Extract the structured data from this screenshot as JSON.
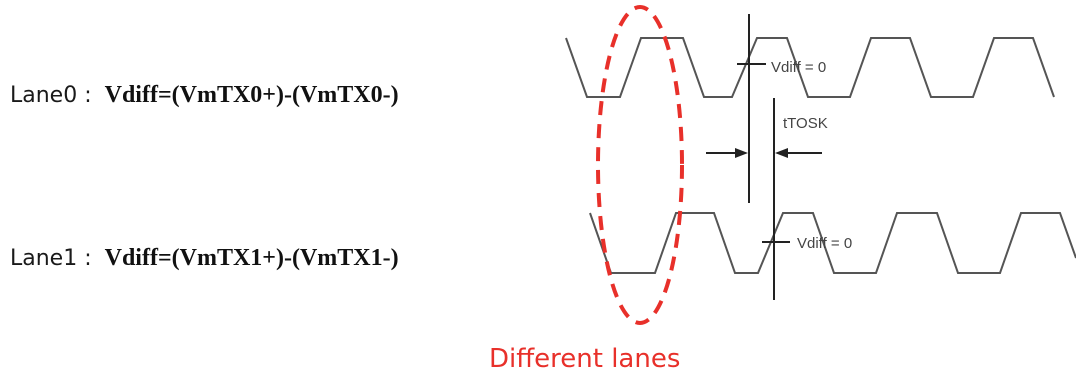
{
  "lanes": [
    {
      "prefix": "Lane0 : ",
      "formula": "Vdiff=(VmTX0+)-(VmTX0-)"
    },
    {
      "prefix": "Lane1 : ",
      "formula": "Vdiff=(VmTX1+)-(VmTX1-)"
    }
  ],
  "labels": {
    "crossing_lane0": "Vdiff = 0",
    "crossing_lane1": "Vdiff = 0",
    "skew": "tTOSK",
    "caption": "Different lanes"
  },
  "colors": {
    "waveform": "#555555",
    "marker": "#222222",
    "highlight": "#e8302a"
  }
}
